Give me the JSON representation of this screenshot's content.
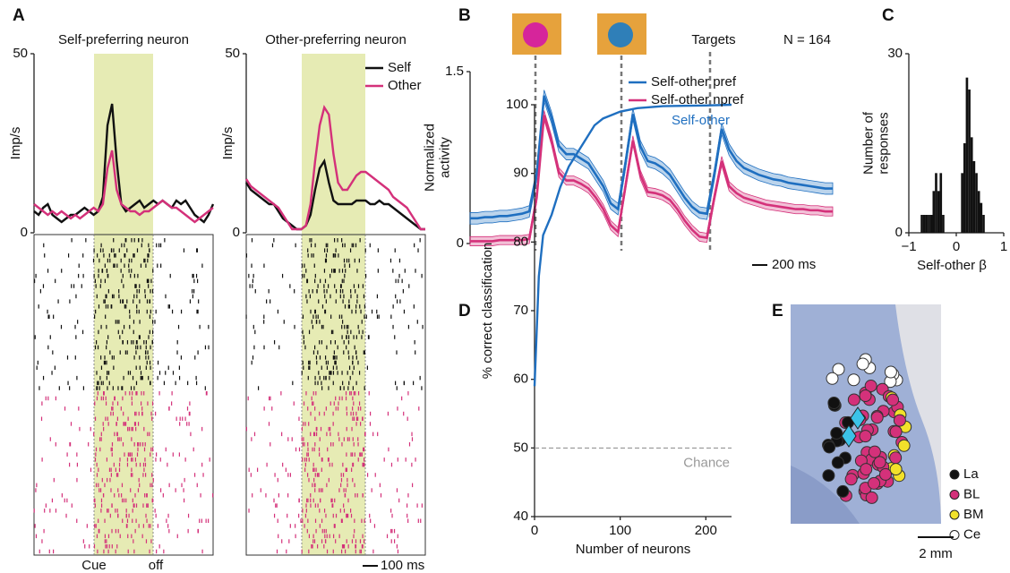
{
  "chart_data": [
    {
      "type": "line",
      "panel_label": "A",
      "title": "Self-preferring neuron",
      "ylabel": "Imp/s",
      "ylim": [
        0,
        50
      ],
      "yticks": [
        0,
        50
      ],
      "annotations": [
        "Cue",
        "off"
      ],
      "series": [
        {
          "color": "#111111",
          "values": [
            6,
            5,
            7,
            8,
            5,
            4,
            3,
            4,
            5,
            5,
            6,
            7,
            6,
            5,
            6,
            10,
            30,
            36,
            20,
            8,
            6,
            7,
            8,
            9,
            7,
            8,
            9,
            8,
            9,
            8,
            7,
            9,
            8,
            9,
            7,
            5,
            4,
            3,
            5,
            8
          ]
        },
        {
          "color": "#d4317a",
          "values": [
            8,
            7,
            6,
            5,
            6,
            5,
            6,
            5,
            4,
            5,
            4,
            5,
            6,
            7,
            6,
            8,
            18,
            23,
            12,
            8,
            7,
            6,
            6,
            5,
            6,
            6,
            7,
            8,
            9,
            8,
            7,
            7,
            6,
            5,
            4,
            3,
            4,
            5,
            6,
            7
          ]
        }
      ]
    },
    {
      "type": "line",
      "title": "Other-preferring neuron",
      "ylabel": "Imp/s",
      "ylim": [
        0,
        50
      ],
      "yticks": [
        0,
        50
      ],
      "scale_bar": "100 ms",
      "series": [
        {
          "name": "Self",
          "color": "#111111",
          "values": [
            14,
            12,
            11,
            10,
            9,
            8,
            8,
            6,
            4,
            3,
            2,
            1,
            1,
            2,
            5,
            12,
            18,
            20,
            14,
            9,
            8,
            8,
            8,
            8,
            9,
            9,
            9,
            8,
            8,
            9,
            8,
            8,
            7,
            6,
            5,
            4,
            3,
            2,
            1,
            1
          ]
        },
        {
          "name": "Other",
          "color": "#d4317a",
          "values": [
            15,
            13,
            12,
            11,
            10,
            9,
            8,
            7,
            5,
            3,
            1,
            1,
            1,
            2,
            8,
            20,
            30,
            35,
            33,
            22,
            14,
            12,
            12,
            14,
            16,
            17,
            17,
            16,
            15,
            14,
            13,
            12,
            10,
            9,
            8,
            7,
            5,
            3,
            1,
            1
          ]
        }
      ]
    },
    {
      "type": "line",
      "panel_label": "B",
      "ylabel": [
        "Normalized",
        "activity"
      ],
      "ylim": [
        0,
        1.5
      ],
      "yticks": [
        0,
        1.5
      ],
      "annotations": [
        "Targets",
        "N = 164"
      ],
      "scale_bar": "200 ms",
      "series": [
        {
          "name": "Self-other pref",
          "color": "#1f6fc0",
          "error": 0.05,
          "values": [
            0.22,
            0.22,
            0.23,
            0.23,
            0.24,
            0.24,
            0.25,
            0.26,
            0.28,
            0.6,
            1.29,
            1.1,
            0.85,
            0.78,
            0.78,
            0.74,
            0.7,
            0.6,
            0.5,
            0.35,
            0.3,
            0.7,
            1.13,
            0.85,
            0.72,
            0.7,
            0.66,
            0.6,
            0.5,
            0.4,
            0.32,
            0.27,
            0.26,
            0.6,
            1.0,
            0.82,
            0.72,
            0.66,
            0.63,
            0.6,
            0.58,
            0.56,
            0.55,
            0.53,
            0.52,
            0.51,
            0.5,
            0.49,
            0.48,
            0.48
          ]
        },
        {
          "name": "Self-other npref",
          "color": "#d4317a",
          "error": 0.04,
          "values": [
            0.02,
            0.02,
            0.02,
            0.02,
            0.03,
            0.03,
            0.03,
            0.03,
            0.04,
            0.4,
            1.12,
            0.9,
            0.62,
            0.55,
            0.55,
            0.52,
            0.48,
            0.4,
            0.3,
            0.16,
            0.1,
            0.5,
            0.9,
            0.6,
            0.45,
            0.44,
            0.42,
            0.38,
            0.3,
            0.2,
            0.12,
            0.06,
            0.05,
            0.4,
            0.72,
            0.5,
            0.44,
            0.4,
            0.38,
            0.36,
            0.34,
            0.33,
            0.32,
            0.31,
            0.3,
            0.3,
            0.29,
            0.29,
            0.28,
            0.28
          ]
        }
      ]
    },
    {
      "type": "histogram",
      "panel_label": "C",
      "ylabel": [
        "Number of",
        "responses"
      ],
      "xlabel": "Self-other β",
      "xlim": [
        -1,
        1
      ],
      "xticks": [
        {
          "value": -1,
          "label": "−1"
        },
        0,
        1
      ],
      "ylim": [
        0,
        30
      ],
      "yticks": [
        0,
        30
      ],
      "color": "#111111",
      "bins": [
        -0.75,
        -0.7,
        -0.65,
        -0.6,
        -0.55,
        -0.5,
        -0.45,
        -0.4,
        -0.35,
        -0.3,
        -0.25,
        -0.2,
        -0.15,
        -0.1,
        -0.05,
        0,
        0.05,
        0.1,
        0.15,
        0.2,
        0.25,
        0.3,
        0.35,
        0.4,
        0.45,
        0.5,
        0.55,
        0.6
      ],
      "counts": [
        3,
        3,
        3,
        3,
        3,
        7,
        10,
        7,
        10,
        3,
        0,
        0,
        0,
        0,
        0,
        0,
        0,
        10,
        15,
        26,
        24,
        16,
        12,
        10,
        7,
        5,
        3
      ]
    },
    {
      "type": "line",
      "panel_label": "D",
      "ylabel": "% correct classification",
      "xlabel": "Number of neurons",
      "xlim": [
        0,
        230
      ],
      "xticks": [
        0,
        100,
        200
      ],
      "ylim": [
        40,
        100
      ],
      "yticks": [
        40,
        50,
        60,
        70,
        80,
        90,
        100
      ],
      "chance": {
        "label": "Chance",
        "value": 50
      },
      "x": [
        0,
        5,
        10,
        20,
        30,
        40,
        50,
        60,
        70,
        80,
        100,
        120,
        150,
        200,
        230
      ],
      "series": [
        {
          "name": "Self-other",
          "color": "#1f6fc0",
          "values": [
            59,
            75,
            81,
            84,
            88,
            91,
            93,
            95,
            97,
            98,
            99,
            99.5,
            99.8,
            99.9,
            100
          ]
        }
      ]
    },
    {
      "type": "map",
      "panel_label": "E",
      "scale_bar": "2 mm",
      "legend": [
        {
          "name": "La",
          "color": "#111111"
        },
        {
          "name": "BL",
          "color": "#d4317a"
        },
        {
          "name": "BM",
          "color": "#f2e12a"
        },
        {
          "name": "Ce",
          "color": "#ffffff"
        }
      ]
    }
  ]
}
